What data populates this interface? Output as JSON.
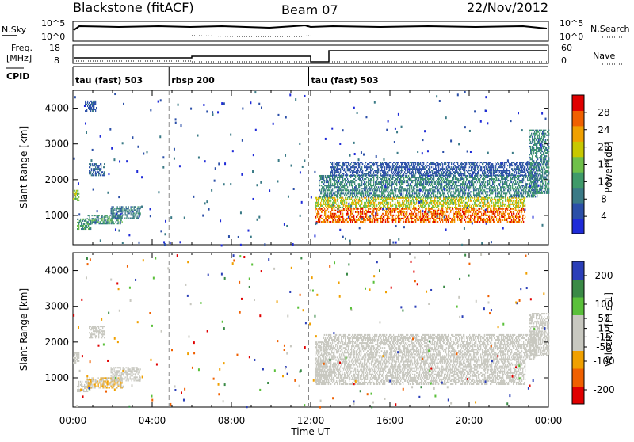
{
  "header": {
    "station": "Blackstone (fitACF)",
    "beam": "Beam 07",
    "date": "22/Nov/2012"
  },
  "top_panels": {
    "nsky_label": "N.Sky",
    "freq_label_1": "Freq.",
    "freq_label_2": "[MHz]",
    "cpid_label": "CPID",
    "nsearch_label": "N.Search",
    "nave_label": "Nave",
    "noise_left_ticks": [
      "10^5",
      "10^0"
    ],
    "noise_right_ticks": [
      "10^5",
      "10^0"
    ],
    "freq_left_ticks": [
      "18",
      "8"
    ],
    "freq_right_ticks": [
      "60",
      "0"
    ]
  },
  "cpid_segments": [
    {
      "label": "tau (fast) 503",
      "start_h": 0,
      "end_h": 4.85
    },
    {
      "label": "rbsp 200",
      "start_h": 4.85,
      "end_h": 11.9
    },
    {
      "label": "tau (fast) 503",
      "start_h": 11.9,
      "end_h": 24
    }
  ],
  "chart_data": [
    {
      "type": "heatmap",
      "title": "Power",
      "ylabel": "Slant Range [km]",
      "xlabel": "Time UT",
      "xlim_hours": [
        0,
        24
      ],
      "ylim": [
        180,
        4500
      ],
      "x_ticks": [
        "00:00",
        "04:00",
        "08:00",
        "12:00",
        "16:00",
        "20:00",
        "00:00"
      ],
      "y_ticks": [
        1000,
        2000,
        3000,
        4000
      ],
      "colorbar": {
        "label": "Power [dB]",
        "ticks": [
          4,
          8,
          12,
          16,
          20,
          24,
          28
        ],
        "range": [
          0,
          32
        ]
      },
      "regions": [
        {
          "t0": 0.0,
          "t1": 0.3,
          "r0": 1400,
          "r1": 1700,
          "v0": 12,
          "v1": 22
        },
        {
          "t0": 0.2,
          "t1": 0.9,
          "r0": 600,
          "r1": 900,
          "v0": 8,
          "v1": 16
        },
        {
          "t0": 0.7,
          "t1": 2.5,
          "r0": 750,
          "r1": 1000,
          "v0": 6,
          "v1": 16
        },
        {
          "t0": 1.9,
          "t1": 3.4,
          "r0": 900,
          "r1": 1250,
          "v0": 6,
          "v1": 12
        },
        {
          "t0": 0.8,
          "t1": 1.6,
          "r0": 2100,
          "r1": 2450,
          "v0": 4,
          "v1": 10
        },
        {
          "t0": 0.6,
          "t1": 1.2,
          "r0": 3900,
          "r1": 4200,
          "v0": 4,
          "v1": 8
        },
        {
          "t0": 12.2,
          "t1": 22.8,
          "r0": 800,
          "r1": 1200,
          "v0": 22,
          "v1": 30
        },
        {
          "t0": 12.2,
          "t1": 22.8,
          "r0": 1200,
          "r1": 1500,
          "v0": 14,
          "v1": 24
        },
        {
          "t0": 12.4,
          "t1": 23.4,
          "r0": 1500,
          "r1": 2100,
          "v0": 6,
          "v1": 14
        },
        {
          "t0": 13.0,
          "t1": 23.6,
          "r0": 2100,
          "r1": 2500,
          "v0": 4,
          "v1": 8
        },
        {
          "t0": 23.0,
          "t1": 24.0,
          "r0": 1600,
          "r1": 3400,
          "v0": 6,
          "v1": 14
        }
      ]
    },
    {
      "type": "heatmap",
      "title": "Velocity",
      "ylabel": "Slant Range [km]",
      "xlabel": "Time UT",
      "xlim_hours": [
        0,
        24
      ],
      "ylim": [
        180,
        4500
      ],
      "x_ticks": [
        "00:00",
        "04:00",
        "08:00",
        "12:00",
        "16:00",
        "20:00",
        "00:00"
      ],
      "y_ticks": [
        1000,
        2000,
        3000,
        4000
      ],
      "colorbar": {
        "label": "Velocity [m s-1]",
        "ticks": [
          200,
          100,
          50,
          15,
          -15,
          -50,
          -100,
          -200
        ],
        "range": [
          -250,
          250
        ]
      },
      "regions": [
        {
          "t0": 0.0,
          "t1": 0.3,
          "r0": 1400,
          "r1": 1700,
          "v0": -15,
          "v1": 15
        },
        {
          "t0": 0.2,
          "t1": 0.9,
          "r0": 600,
          "r1": 900,
          "v0": -15,
          "v1": 15
        },
        {
          "t0": 0.7,
          "t1": 2.5,
          "r0": 700,
          "r1": 1000,
          "v0": -100,
          "v1": -30
        },
        {
          "t0": 1.9,
          "t1": 3.4,
          "r0": 900,
          "r1": 1300,
          "v0": -15,
          "v1": 15
        },
        {
          "t0": 0.8,
          "t1": 1.6,
          "r0": 2100,
          "r1": 2450,
          "v0": -15,
          "v1": 15
        },
        {
          "t0": 12.2,
          "t1": 22.8,
          "r0": 800,
          "r1": 1500,
          "v0": -15,
          "v1": 15
        },
        {
          "t0": 12.2,
          "t1": 12.8,
          "r0": 800,
          "r1": 2000,
          "v0": 30,
          "v1": 60
        },
        {
          "t0": 12.6,
          "t1": 23.4,
          "r0": 1500,
          "r1": 2200,
          "v0": -15,
          "v1": 15
        },
        {
          "t0": 23.0,
          "t1": 24.0,
          "r0": 1600,
          "r1": 2800,
          "v0": -15,
          "v1": 15
        }
      ]
    }
  ],
  "colors": {
    "power_scale": [
      "#1f2bd8",
      "#2b4fa8",
      "#3a7a86",
      "#3f9a6a",
      "#6fc04a",
      "#c8c800",
      "#f0a000",
      "#f06000",
      "#e00000"
    ],
    "velocity_scale": [
      "#e00000",
      "#f06000",
      "#f0a000",
      "#c8c8c0",
      "#c8c8c0",
      "#5ac03a",
      "#3a8a46",
      "#2b3fb8"
    ]
  }
}
